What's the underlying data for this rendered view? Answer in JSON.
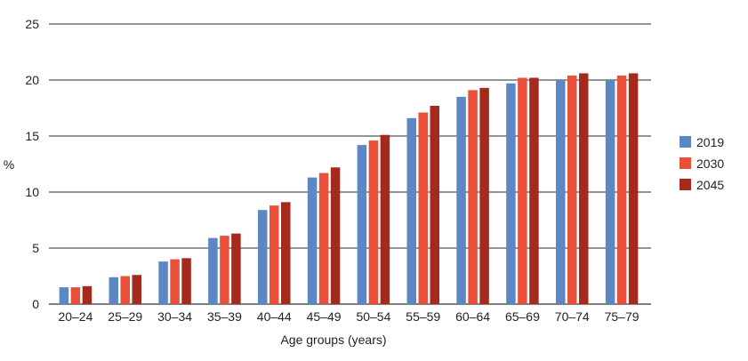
{
  "chart_data": {
    "type": "bar",
    "title": "",
    "xlabel": "Age groups (years)",
    "ylabel": "%",
    "ylim": [
      0,
      25
    ],
    "yticks": [
      0,
      5,
      10,
      15,
      20,
      25
    ],
    "grid": true,
    "legend_position": "right",
    "categories": [
      "20–24",
      "25–29",
      "30–34",
      "35–39",
      "40–44",
      "45–49",
      "50–54",
      "55–59",
      "60–64",
      "65–69",
      "70–74",
      "75–79"
    ],
    "series": [
      {
        "name": "2019",
        "color": "#5b87c5",
        "values": [
          1.5,
          2.4,
          3.8,
          5.9,
          8.4,
          11.3,
          14.2,
          16.6,
          18.5,
          19.7,
          20.0,
          20.0
        ]
      },
      {
        "name": "2030",
        "color": "#e8503a",
        "values": [
          1.5,
          2.5,
          4.0,
          6.1,
          8.8,
          11.7,
          14.6,
          17.1,
          19.1,
          20.2,
          20.4,
          20.4
        ]
      },
      {
        "name": "2045",
        "color": "#a52a1e",
        "values": [
          1.6,
          2.6,
          4.1,
          6.3,
          9.1,
          12.2,
          15.1,
          17.7,
          19.3,
          20.2,
          20.6,
          20.6
        ]
      }
    ]
  }
}
